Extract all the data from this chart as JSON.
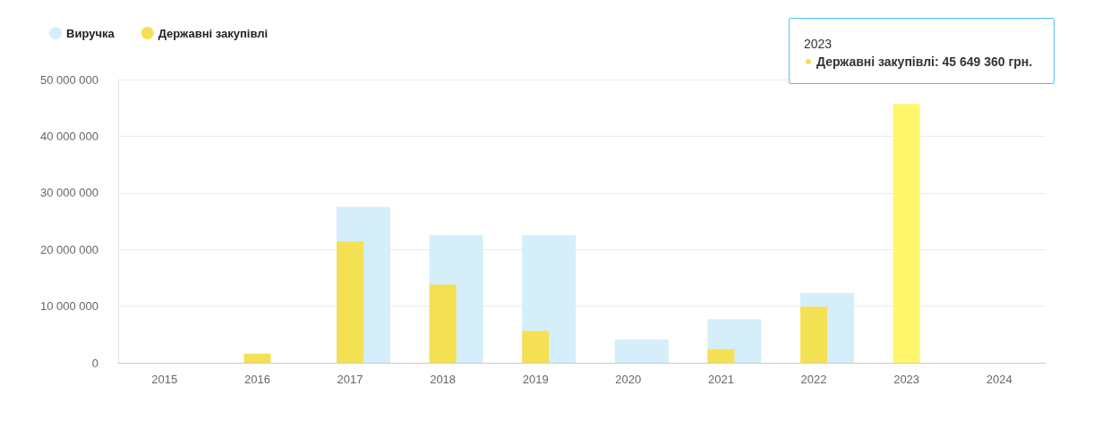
{
  "chart_data": {
    "type": "bar",
    "categories": [
      "2015",
      "2016",
      "2017",
      "2018",
      "2019",
      "2020",
      "2021",
      "2022",
      "2023",
      "2024"
    ],
    "series": [
      {
        "name": "Виручка",
        "color": "#d4eefa",
        "values": [
          null,
          null,
          27500000,
          22500000,
          22500000,
          4100000,
          7700000,
          12300000,
          null,
          null
        ]
      },
      {
        "name": "Державні закупівлі",
        "color": "#f4e053",
        "colors": [
          "#f4e053",
          "#f4e053",
          "#f4e053",
          "#f4e053",
          "#f4e053",
          "#f4e053",
          "#f4e053",
          "#f4e053",
          "#fff66b",
          "#f4e053"
        ],
        "values": [
          null,
          1600000,
          21400000,
          13800000,
          5600000,
          null,
          2400000,
          9900000,
          45649360,
          null
        ]
      }
    ],
    "ylim": [
      0,
      50000000
    ],
    "yticks": [
      0,
      10000000,
      20000000,
      30000000,
      40000000,
      50000000
    ],
    "grid": "y",
    "legend": "top left",
    "annotations": [
      "2023",
      "Державні закупівлі: 45 649 360 грн."
    ]
  }
}
